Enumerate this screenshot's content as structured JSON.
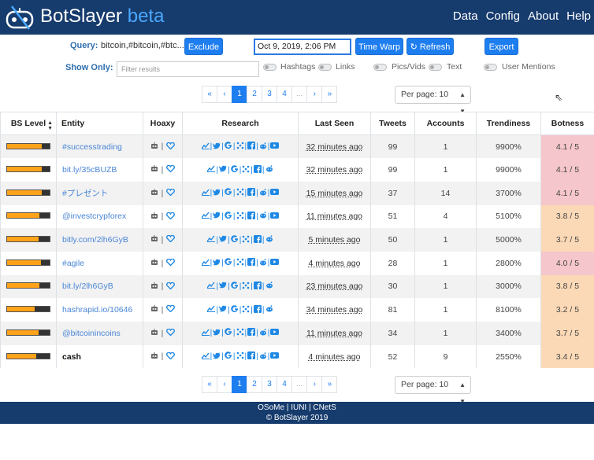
{
  "header": {
    "brand": "BotSlayer",
    "beta": "beta",
    "nav": [
      "Data",
      "Config",
      "About",
      "Help"
    ]
  },
  "controls": {
    "query_label": "Query:",
    "query_value": "bitcoin,#bitcoin,#btc...",
    "exclude_label": "Exclude",
    "date_value": "Oct 9, 2019, 2:06 PM",
    "time_warp_label": "Time Warp",
    "refresh_label": "Refresh",
    "export_label": "Export",
    "show_only_label": "Show Only:",
    "filter_placeholder": "Filter results",
    "toggles": [
      "Hashtags",
      "Links",
      "Pics/Vids",
      "Text",
      "User Mentions"
    ]
  },
  "pagination": {
    "pages": [
      "«",
      "‹",
      "1",
      "2",
      "3",
      "4",
      "...",
      "›",
      "»"
    ],
    "active": "1",
    "per_page": "Per page: 10"
  },
  "table": {
    "headers": [
      "BS Level",
      "Entity",
      "Hoaxy",
      "Research",
      "Last Seen",
      "Tweets",
      "Accounts",
      "Trendiness",
      "Botness"
    ],
    "rows": [
      {
        "bs": 0.82,
        "entity": "#successtrading",
        "seen": "32 minutes ago",
        "tweets": "99",
        "accounts": "1",
        "trend": "9900%",
        "botness": "4.1 / 5",
        "color": "pink",
        "yt": true
      },
      {
        "bs": 0.82,
        "entity": "bit.ly/35cBUZB",
        "seen": "32 minutes ago",
        "tweets": "99",
        "accounts": "1",
        "trend": "9900%",
        "botness": "4.1 / 5",
        "color": "pink",
        "yt": false
      },
      {
        "bs": 0.82,
        "entity": "#プレゼント",
        "seen": "15 minutes ago",
        "tweets": "37",
        "accounts": "14",
        "trend": "3700%",
        "botness": "4.1 / 5",
        "color": "pink",
        "yt": true
      },
      {
        "bs": 0.76,
        "entity": "@investcrypforex",
        "seen": "11 minutes ago",
        "tweets": "51",
        "accounts": "4",
        "trend": "5100%",
        "botness": "3.8 / 5",
        "color": "peach",
        "yt": true
      },
      {
        "bs": 0.74,
        "entity": "bitly.com/2lh6GyB",
        "seen": "5 minutes ago",
        "tweets": "50",
        "accounts": "1",
        "trend": "5000%",
        "botness": "3.7 / 5",
        "color": "peach",
        "yt": false
      },
      {
        "bs": 0.8,
        "entity": "#agile",
        "seen": "4 minutes ago",
        "tweets": "28",
        "accounts": "1",
        "trend": "2800%",
        "botness": "4.0 / 5",
        "color": "pink",
        "yt": true
      },
      {
        "bs": 0.76,
        "entity": "bit.ly/2lh6GyB",
        "seen": "23 minutes ago",
        "tweets": "30",
        "accounts": "1",
        "trend": "3000%",
        "botness": "3.8 / 5",
        "color": "peach",
        "yt": false
      },
      {
        "bs": 0.64,
        "entity": "hashrapid.io/10646",
        "seen": "34 minutes ago",
        "tweets": "81",
        "accounts": "1",
        "trend": "8100%",
        "botness": "3.2 / 5",
        "color": "peach",
        "yt": false
      },
      {
        "bs": 0.74,
        "entity": "@bitcoinincoins",
        "seen": "11 minutes ago",
        "tweets": "34",
        "accounts": "1",
        "trend": "3400%",
        "botness": "3.7 / 5",
        "color": "peach",
        "yt": true
      },
      {
        "bs": 0.68,
        "entity": "cash",
        "seen": "4 minutes ago",
        "tweets": "52",
        "accounts": "9",
        "trend": "2550%",
        "botness": "3.4 / 5",
        "color": "peach",
        "yt": true
      }
    ]
  },
  "footer": {
    "line1": "OSoMe | IUNI | CNetS",
    "line2": "© BotSlayer 2019"
  },
  "colors": {
    "navbar": "#163b6d",
    "accent": "#1e7ef0",
    "botness_high": "#f5c6cb",
    "botness_mid": "#fcd9b6"
  }
}
